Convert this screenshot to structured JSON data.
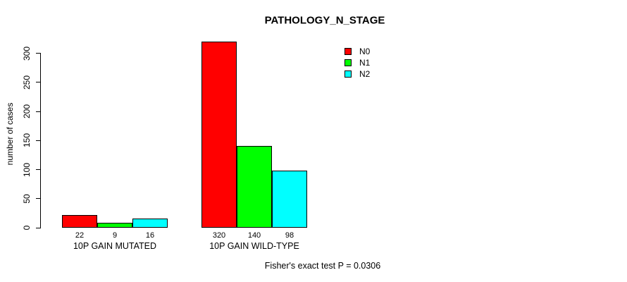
{
  "chart_data": {
    "type": "bar",
    "title": "PATHOLOGY_N_STAGE",
    "xlabel": "",
    "ylabel": "number of cases",
    "categories": [
      "10P GAIN MUTATED",
      "10P GAIN WILD-TYPE"
    ],
    "series": [
      {
        "name": "N0",
        "color": "#ff0000",
        "values": [
          22,
          320
        ]
      },
      {
        "name": "N1",
        "color": "#00ff00",
        "values": [
          9,
          140
        ]
      },
      {
        "name": "N2",
        "color": "#00ffff",
        "values": [
          16,
          98
        ]
      }
    ],
    "value_labels": [
      [
        "22",
        "9",
        "16"
      ],
      [
        "320",
        "140",
        "98"
      ]
    ],
    "yticks": [
      0,
      50,
      100,
      150,
      200,
      250,
      300
    ],
    "ylim": [
      0,
      320
    ],
    "grid": false,
    "legend_position": "top-right",
    "annotation": "Fisher's exact test P = 0.0306"
  }
}
